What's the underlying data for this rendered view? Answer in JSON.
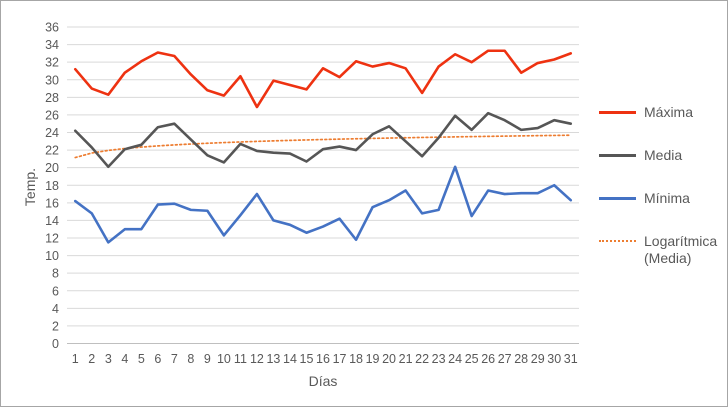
{
  "window": {
    "background_color": "#ffffff",
    "border_color": "#a6a6a6",
    "text_color": "#595959",
    "gridline_color": "#d9d9d9",
    "axisline_color": "#bfbfbf"
  },
  "chart_data": {
    "type": "line",
    "title": "",
    "xlabel": "Días",
    "ylabel": "Temp.",
    "ylim": [
      0,
      36
    ],
    "ytick_step": 2,
    "grid": true,
    "legend_position": "right",
    "categories": [
      1,
      2,
      3,
      4,
      5,
      6,
      7,
      8,
      9,
      10,
      11,
      12,
      13,
      14,
      15,
      16,
      17,
      18,
      19,
      20,
      21,
      22,
      23,
      24,
      25,
      26,
      27,
      28,
      29,
      30,
      31
    ],
    "series": [
      {
        "name": "Máxima",
        "color": "#ee3211",
        "style": "solid",
        "values": [
          31.2,
          29.0,
          28.3,
          30.8,
          32.1,
          33.1,
          32.7,
          30.6,
          28.8,
          28.2,
          30.4,
          26.9,
          29.9,
          29.4,
          28.9,
          31.3,
          30.3,
          32.1,
          31.5,
          31.9,
          31.3,
          28.5,
          31.5,
          32.9,
          32.0,
          33.3,
          33.3,
          30.8,
          31.9,
          32.3,
          33.0
        ]
      },
      {
        "name": "Media",
        "color": "#565656",
        "style": "solid",
        "values": [
          24.2,
          22.3,
          20.1,
          22.1,
          22.6,
          24.6,
          25.0,
          23.2,
          21.4,
          20.6,
          22.7,
          21.9,
          21.7,
          21.6,
          20.7,
          22.1,
          22.4,
          22.0,
          23.8,
          24.7,
          23.0,
          21.3,
          23.4,
          25.9,
          24.3,
          26.2,
          25.4,
          24.3,
          24.5,
          25.4,
          25.0
        ]
      },
      {
        "name": "Mínima",
        "color": "#4472c4",
        "style": "solid",
        "values": [
          16.2,
          14.8,
          11.5,
          13.0,
          13.0,
          15.8,
          15.9,
          15.2,
          15.1,
          12.3,
          14.6,
          17.0,
          14.0,
          13.5,
          12.6,
          13.3,
          14.2,
          11.8,
          15.5,
          16.3,
          17.4,
          14.8,
          15.2,
          20.1,
          14.5,
          17.4,
          17.0,
          17.1,
          17.1,
          18.0,
          16.3
        ]
      }
    ],
    "trendline": {
      "name": "Logarítmica (Media)",
      "color": "#ed7d31",
      "style": "dotted",
      "of_series": "Media",
      "a": 21.15,
      "b": 0.74,
      "start_value": 21.15,
      "end_value": 23.69
    }
  }
}
